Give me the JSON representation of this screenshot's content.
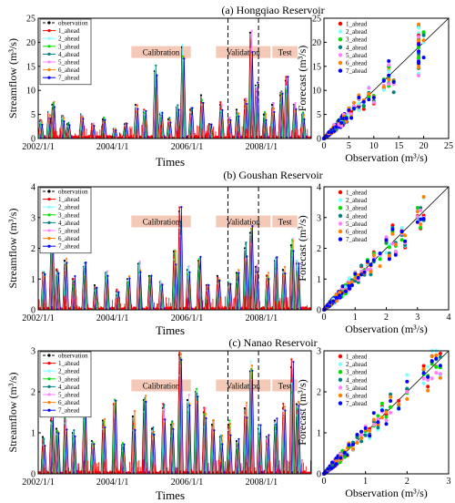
{
  "series_names": [
    "observation",
    "1_ahead",
    "2_ahead",
    "3_ahead",
    "4_ahead",
    "5_ahead",
    "6_ahead",
    "7_ahead"
  ],
  "series_colors": [
    "#000000",
    "#ff0000",
    "#7fffff",
    "#00e000",
    "#008080",
    "#ff80ff",
    "#ff8000",
    "#0000ff"
  ],
  "phase_labels": {
    "calibration": "Calibration",
    "validation": "Validation",
    "test": "Test"
  },
  "chart_data": [
    {
      "type": "line",
      "panel": "hongqiao-timeseries",
      "title": "(a) Hongqiao Reservoir",
      "ylabel": "Streamflow (m³/s)",
      "xlabel": "Times",
      "x_ticks": [
        "2002/1/1",
        "2004/1/1",
        "2006/1/1",
        "2008/1/1"
      ],
      "ylim": [
        0,
        25
      ],
      "y_ticks": [
        "0",
        "5",
        "10",
        "15",
        "20",
        "25"
      ],
      "phase_boundaries_fraction": [
        0.695,
        0.807
      ],
      "peaks": [
        {
          "t": 0.01,
          "v": 3.5
        },
        {
          "t": 0.04,
          "v": 5.5
        },
        {
          "t": 0.055,
          "v": 7
        },
        {
          "t": 0.09,
          "v": 4.5
        },
        {
          "t": 0.11,
          "v": 3
        },
        {
          "t": 0.16,
          "v": 5
        },
        {
          "t": 0.2,
          "v": 3
        },
        {
          "t": 0.24,
          "v": 4
        },
        {
          "t": 0.28,
          "v": 2
        },
        {
          "t": 0.32,
          "v": 3
        },
        {
          "t": 0.36,
          "v": 7
        },
        {
          "t": 0.39,
          "v": 5.5
        },
        {
          "t": 0.43,
          "v": 14
        },
        {
          "t": 0.45,
          "v": 5
        },
        {
          "t": 0.48,
          "v": 4
        },
        {
          "t": 0.51,
          "v": 6.5
        },
        {
          "t": 0.53,
          "v": 19
        },
        {
          "t": 0.56,
          "v": 6
        },
        {
          "t": 0.6,
          "v": 9
        },
        {
          "t": 0.63,
          "v": 3
        },
        {
          "t": 0.67,
          "v": 7
        },
        {
          "t": 0.7,
          "v": 4
        },
        {
          "t": 0.73,
          "v": 6
        },
        {
          "t": 0.76,
          "v": 8
        },
        {
          "t": 0.78,
          "v": 22
        },
        {
          "t": 0.8,
          "v": 11
        },
        {
          "t": 0.83,
          "v": 5
        },
        {
          "t": 0.86,
          "v": 7
        },
        {
          "t": 0.89,
          "v": 9
        },
        {
          "t": 0.91,
          "v": 12
        },
        {
          "t": 0.94,
          "v": 7
        },
        {
          "t": 0.97,
          "v": 5
        }
      ]
    },
    {
      "type": "scatter",
      "panel": "hongqiao-scatter",
      "xlabel": "Observation (m³/s)",
      "ylabel": "Forecast (m³/s)",
      "xlim": [
        0,
        25
      ],
      "ylim": [
        0,
        25
      ],
      "x_ticks": [
        "0",
        "5",
        "10",
        "15",
        "20",
        "25"
      ],
      "y_ticks": [
        "0",
        "5",
        "10",
        "15",
        "20",
        "25"
      ],
      "legend": "top-left",
      "points": [
        [
          0.5,
          0.6
        ],
        [
          1,
          1.2
        ],
        [
          1.5,
          1.3
        ],
        [
          2,
          2.5
        ],
        [
          2.5,
          2.2
        ],
        [
          3,
          3.4
        ],
        [
          3.5,
          3
        ],
        [
          4,
          4.6
        ],
        [
          4.5,
          4
        ],
        [
          5,
          5.5
        ],
        [
          5.5,
          5
        ],
        [
          6,
          6.8
        ],
        [
          7,
          6.5
        ],
        [
          7,
          8
        ],
        [
          8,
          7
        ],
        [
          9,
          9.5
        ],
        [
          10,
          8
        ],
        [
          12,
          11
        ],
        [
          13,
          12.5
        ],
        [
          13,
          14
        ],
        [
          14,
          11
        ],
        [
          19,
          19
        ],
        [
          19,
          17
        ],
        [
          19,
          21
        ],
        [
          19,
          22
        ],
        [
          19,
          15
        ],
        [
          20,
          19.5
        ]
      ]
    },
    {
      "type": "line",
      "panel": "goushan-timeseries",
      "title": "(b) Goushan Reservoir",
      "ylabel": "Streamflow (m³/s)",
      "xlabel": "Times",
      "x_ticks": [
        "2002/1/1",
        "2004/1/1",
        "2006/1/1",
        "2008/1/1"
      ],
      "ylim": [
        0,
        4
      ],
      "y_ticks": [
        "0",
        "1",
        "2",
        "3",
        "4"
      ],
      "phase_boundaries_fraction": [
        0.695,
        0.807
      ],
      "peaks": [
        {
          "t": 0.02,
          "v": 1.2
        },
        {
          "t": 0.05,
          "v": 2.2
        },
        {
          "t": 0.07,
          "v": 1.3
        },
        {
          "t": 0.1,
          "v": 1.6
        },
        {
          "t": 0.13,
          "v": 1
        },
        {
          "t": 0.17,
          "v": 1.4
        },
        {
          "t": 0.21,
          "v": 0.8
        },
        {
          "t": 0.25,
          "v": 1.2
        },
        {
          "t": 0.29,
          "v": 0.6
        },
        {
          "t": 0.33,
          "v": 1
        },
        {
          "t": 0.37,
          "v": 1.5
        },
        {
          "t": 0.41,
          "v": 1.1
        },
        {
          "t": 0.45,
          "v": 0.9
        },
        {
          "t": 0.5,
          "v": 1.9
        },
        {
          "t": 0.52,
          "v": 3.2
        },
        {
          "t": 0.55,
          "v": 1.3
        },
        {
          "t": 0.59,
          "v": 1.6
        },
        {
          "t": 0.62,
          "v": 0.8
        },
        {
          "t": 0.66,
          "v": 1.1
        },
        {
          "t": 0.7,
          "v": 0.9
        },
        {
          "t": 0.73,
          "v": 1.2
        },
        {
          "t": 0.76,
          "v": 2
        },
        {
          "t": 0.78,
          "v": 2.5
        },
        {
          "t": 0.8,
          "v": 1.4
        },
        {
          "t": 0.84,
          "v": 1.1
        },
        {
          "t": 0.87,
          "v": 1.6
        },
        {
          "t": 0.9,
          "v": 1.3
        },
        {
          "t": 0.93,
          "v": 2.1
        },
        {
          "t": 0.95,
          "v": 1.5
        }
      ]
    },
    {
      "type": "scatter",
      "panel": "goushan-scatter",
      "xlabel": "Observation (m³/s)",
      "ylabel": "Forecast (m³/s)",
      "xlim": [
        0,
        4
      ],
      "ylim": [
        0,
        4
      ],
      "x_ticks": [
        "0",
        "1",
        "2",
        "3",
        "4"
      ],
      "y_ticks": [
        "0",
        "1",
        "2",
        "3",
        "4"
      ],
      "legend": "top-left",
      "points": [
        [
          0.1,
          0.12
        ],
        [
          0.2,
          0.25
        ],
        [
          0.3,
          0.3
        ],
        [
          0.4,
          0.45
        ],
        [
          0.5,
          0.5
        ],
        [
          0.6,
          0.7
        ],
        [
          0.7,
          0.65
        ],
        [
          0.8,
          0.9
        ],
        [
          0.9,
          0.85
        ],
        [
          1,
          1.1
        ],
        [
          1.1,
          1
        ],
        [
          1.2,
          1.3
        ],
        [
          1.3,
          1.2
        ],
        [
          1.4,
          1.5
        ],
        [
          1.5,
          1.3
        ],
        [
          1.6,
          1.7
        ],
        [
          1.8,
          1.6
        ],
        [
          2,
          2.1
        ],
        [
          2.1,
          1.9
        ],
        [
          2.2,
          2.4
        ],
        [
          2.3,
          2
        ],
        [
          2.5,
          2.6
        ],
        [
          2.6,
          2.3
        ],
        [
          3,
          3.1
        ],
        [
          3.1,
          3
        ],
        [
          3.2,
          3.3
        ]
      ]
    },
    {
      "type": "line",
      "panel": "nanao-timeseries",
      "title": "(c) Nanao Reservoir",
      "ylabel": "Streamflow (m³/s)",
      "xlabel": "Times",
      "x_ticks": [
        "2002/1/1",
        "2004/1/1",
        "2006/1/1",
        "2008/1/1"
      ],
      "ylim": [
        0,
        3
      ],
      "y_ticks": [
        "0",
        "1",
        "2",
        "3"
      ],
      "phase_boundaries_fraction": [
        0.695,
        0.807
      ],
      "peaks": [
        {
          "t": 0.02,
          "v": 0.9
        },
        {
          "t": 0.05,
          "v": 1.3
        },
        {
          "t": 0.07,
          "v": 1.1
        },
        {
          "t": 0.1,
          "v": 1.4
        },
        {
          "t": 0.13,
          "v": 1
        },
        {
          "t": 0.17,
          "v": 1.5
        },
        {
          "t": 0.2,
          "v": 0.8
        },
        {
          "t": 0.24,
          "v": 1.3
        },
        {
          "t": 0.28,
          "v": 1.7
        },
        {
          "t": 0.31,
          "v": 0.7
        },
        {
          "t": 0.35,
          "v": 1.4
        },
        {
          "t": 0.39,
          "v": 1.8
        },
        {
          "t": 0.42,
          "v": 1.1
        },
        {
          "t": 0.46,
          "v": 1.6
        },
        {
          "t": 0.49,
          "v": 1.2
        },
        {
          "t": 0.52,
          "v": 2.9
        },
        {
          "t": 0.55,
          "v": 1.8
        },
        {
          "t": 0.58,
          "v": 2
        },
        {
          "t": 0.61,
          "v": 1.5
        },
        {
          "t": 0.64,
          "v": 1.2
        },
        {
          "t": 0.67,
          "v": 0.9
        },
        {
          "t": 0.7,
          "v": 1.2
        },
        {
          "t": 0.73,
          "v": 0.8
        },
        {
          "t": 0.76,
          "v": 1.6
        },
        {
          "t": 0.78,
          "v": 2.5
        },
        {
          "t": 0.81,
          "v": 1.1
        },
        {
          "t": 0.84,
          "v": 0.9
        },
        {
          "t": 0.87,
          "v": 1.3
        },
        {
          "t": 0.9,
          "v": 1.6
        },
        {
          "t": 0.93,
          "v": 2.6
        },
        {
          "t": 0.95,
          "v": 1.7
        }
      ]
    },
    {
      "type": "scatter",
      "panel": "nanao-scatter",
      "xlabel": "Observation (m³/s)",
      "ylabel": "Forecast (m³/s)",
      "xlim": [
        0,
        3
      ],
      "ylim": [
        0,
        3
      ],
      "x_ticks": [
        "0",
        "1",
        "2",
        "3"
      ],
      "y_ticks": [
        "0",
        "1",
        "2",
        "3"
      ],
      "legend": "top-left",
      "points": [
        [
          0.1,
          0.12
        ],
        [
          0.2,
          0.25
        ],
        [
          0.3,
          0.28
        ],
        [
          0.4,
          0.45
        ],
        [
          0.5,
          0.48
        ],
        [
          0.6,
          0.65
        ],
        [
          0.7,
          0.68
        ],
        [
          0.8,
          0.85
        ],
        [
          0.9,
          0.9
        ],
        [
          1,
          1.05
        ],
        [
          1.1,
          1
        ],
        [
          1.2,
          1.3
        ],
        [
          1.3,
          1.25
        ],
        [
          1.4,
          1.5
        ],
        [
          1.5,
          1.4
        ],
        [
          1.6,
          1.7
        ],
        [
          1.8,
          1.7
        ],
        [
          2,
          2.1
        ],
        [
          2.4,
          2.5
        ],
        [
          2.5,
          2.3
        ],
        [
          2.6,
          2.7
        ],
        [
          2.7,
          2.8
        ],
        [
          2.8,
          2.6
        ]
      ]
    }
  ]
}
